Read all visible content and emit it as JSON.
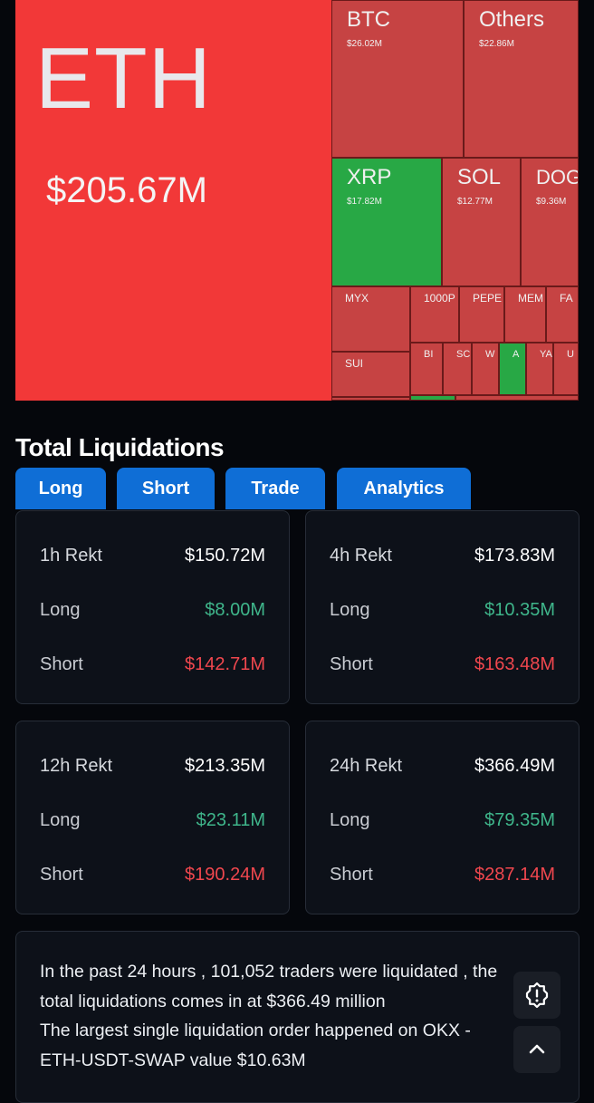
{
  "treemap": {
    "eth": {
      "symbol": "ETH",
      "value": "$205.67M"
    },
    "btc": {
      "symbol": "BTC",
      "value": "$26.02M"
    },
    "others": {
      "symbol": "Others",
      "value": "$22.86M"
    },
    "xrp": {
      "symbol": "XRP",
      "value": "$17.82M"
    },
    "sol": {
      "symbol": "SOL",
      "value": "$12.77M"
    },
    "dog": {
      "symbol": "DOG",
      "value": "$9.36M"
    },
    "small": {
      "myx": "MYX",
      "sui": "SUI",
      "k1000p": "1000P",
      "pepe": "PEPE",
      "mem": "MEM",
      "fa": "FA",
      "bi": "BI",
      "sc": "SC",
      "w": "W",
      "a": "A",
      "ya": "YA",
      "u": "U"
    }
  },
  "section": {
    "title": "Total Liquidations"
  },
  "tabs": {
    "long": "Long",
    "short": "Short",
    "trade": "Trade",
    "analytics": "Analytics"
  },
  "cards": {
    "h1": {
      "label": "1h Rekt",
      "total": "$150.72M",
      "long_label": "Long",
      "long": "$8.00M",
      "short_label": "Short",
      "short": "$142.71M"
    },
    "h4": {
      "label": "4h Rekt",
      "total": "$173.83M",
      "long_label": "Long",
      "long": "$10.35M",
      "short_label": "Short",
      "short": "$163.48M"
    },
    "h12": {
      "label": "12h Rekt",
      "total": "$213.35M",
      "long_label": "Long",
      "long": "$23.11M",
      "short_label": "Short",
      "short": "$190.24M"
    },
    "h24": {
      "label": "24h Rekt",
      "total": "$366.49M",
      "long_label": "Long",
      "long": "$79.35M",
      "short_label": "Short",
      "short": "$287.14M"
    }
  },
  "info": {
    "line1": "In the past 24 hours , 101,052 traders were liquidated , the",
    "line2": "total liquidations comes in at $366.49 million",
    "line3": "The largest single liquidation order happened on OKX -",
    "line4": "ETH-USDT-SWAP value $10.63M"
  },
  "icons": {
    "alert": "alert-badge-icon",
    "scroll_top": "chevron-up-icon"
  },
  "colors": {
    "accent": "#0f6ed6",
    "positive": "#3fb68b",
    "negative": "#f0474e",
    "treemap_red": "#c64343",
    "treemap_bright": "#f23838",
    "treemap_green": "#28a845"
  }
}
